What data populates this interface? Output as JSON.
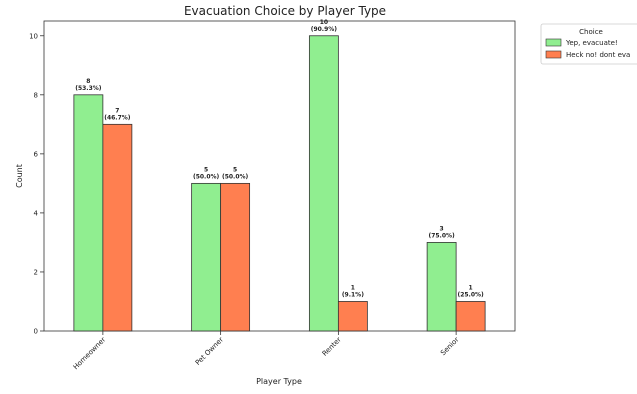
{
  "chart_data": {
    "type": "bar",
    "title": "Evacuation Choice by Player Type",
    "xlabel": "Player Type",
    "ylabel": "Count",
    "categories": [
      "Homeowner",
      "Pet Owner",
      "Renter",
      "Senior"
    ],
    "ylim": [
      0,
      10.5
    ],
    "yticks": [
      0,
      2,
      4,
      6,
      8,
      10
    ],
    "grid": false,
    "legend": {
      "title": "Choice",
      "placement": "outside-top-right"
    },
    "series": [
      {
        "name": "Yep, evacuate!",
        "values": [
          8,
          5,
          10,
          3
        ],
        "labels": [
          "(53.3%)",
          "(50.0%)",
          "(90.9%)",
          "(75.0%)"
        ],
        "color": "#90ee90"
      },
      {
        "name": "Heck no! dont eva",
        "values": [
          7,
          5,
          1,
          1
        ],
        "labels": [
          "(46.7%)",
          "(50.0%)",
          "(9.1%)",
          "(25.0%)"
        ],
        "color": "#ff7f50"
      }
    ]
  }
}
